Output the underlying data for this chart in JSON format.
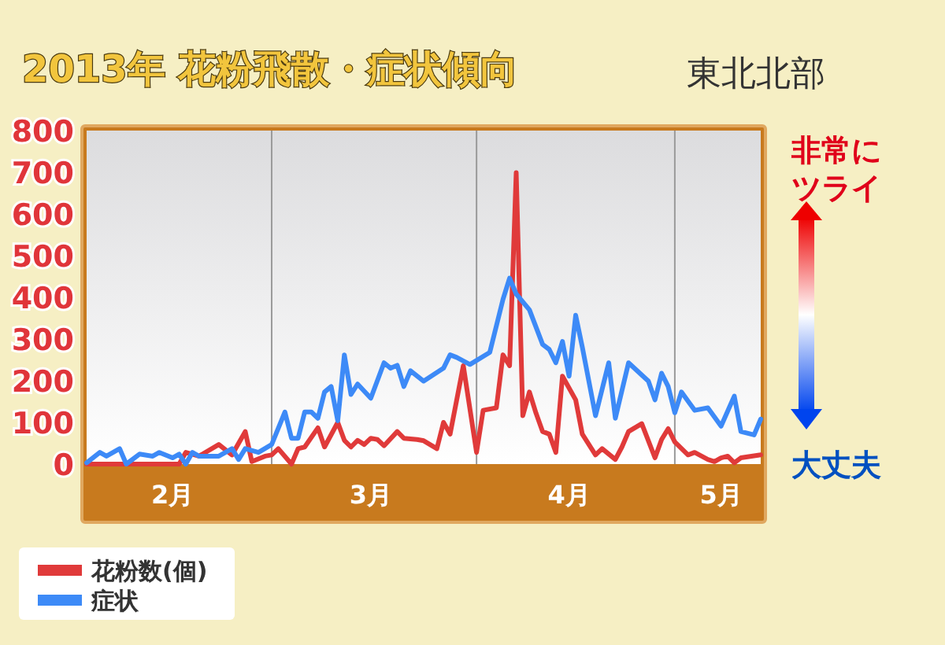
{
  "chart_data": {
    "type": "line",
    "title": "2013年 花粉飛散・症状傾向",
    "subtitle": "東北北部",
    "annotations": [
      "非常にツライ",
      "大丈夫"
    ],
    "xlim": [
      "2013-02-01",
      "2013-05-14"
    ],
    "xticks": [
      {
        "value": "2013-02-14",
        "label": "2月"
      },
      {
        "value": "2013-03-16",
        "label": "3月"
      },
      {
        "value": "2013-04-15",
        "label": "4月"
      },
      {
        "value": "2013-05-08",
        "label": "5月"
      }
    ],
    "ylim": [
      0,
      800
    ],
    "yticks": [
      0,
      100,
      200,
      300,
      400,
      500,
      600,
      700,
      800
    ],
    "ref_lines": [
      {
        "axis": "x",
        "value": "2013-03-01",
        "color": "#9a9a9a"
      },
      {
        "axis": "x",
        "value": "2013-04-01",
        "color": "#9a9a9a"
      },
      {
        "axis": "x",
        "value": "2013-05-01",
        "color": "#9a9a9a"
      }
    ],
    "legend": "bottom left",
    "marker": "none",
    "line_style": "solid",
    "series": [
      {
        "name": "花粉数(個)",
        "color": "#e03a3a",
        "x": [
          "2013-02-01",
          "2013-02-15",
          "2013-02-16",
          "2013-02-18",
          "2013-02-21",
          "2013-02-23",
          "2013-02-25",
          "2013-02-26",
          "2013-02-28",
          "2013-03-01",
          "2013-03-02",
          "2013-03-04",
          "2013-03-05",
          "2013-03-06",
          "2013-03-08",
          "2013-03-09",
          "2013-03-11",
          "2013-03-12",
          "2013-03-13",
          "2013-03-14",
          "2013-03-15",
          "2013-03-16",
          "2013-03-17",
          "2013-03-18",
          "2013-03-20",
          "2013-03-21",
          "2013-03-23",
          "2013-03-24",
          "2013-03-26",
          "2013-03-27",
          "2013-03-28",
          "2013-03-30",
          "2013-04-01",
          "2013-04-02",
          "2013-04-04",
          "2013-04-05",
          "2013-04-06",
          "2013-04-07",
          "2013-04-08",
          "2013-04-09",
          "2013-04-10",
          "2013-04-11",
          "2013-04-12",
          "2013-04-13",
          "2013-04-14",
          "2013-04-16",
          "2013-04-17",
          "2013-04-19",
          "2013-04-20",
          "2013-04-22",
          "2013-04-23",
          "2013-04-24",
          "2013-04-26",
          "2013-04-28",
          "2013-04-29",
          "2013-04-30",
          "2013-05-01",
          "2013-05-03",
          "2013-05-04",
          "2013-05-06",
          "2013-05-07",
          "2013-05-08",
          "2013-05-09",
          "2013-05-10",
          "2013-05-11",
          "2013-05-14"
        ],
        "values": [
          0,
          0,
          28,
          19,
          47,
          22,
          78,
          6,
          19,
          22,
          37,
          0,
          37,
          41,
          87,
          41,
          100,
          57,
          41,
          57,
          47,
          62,
          59,
          44,
          78,
          62,
          59,
          56,
          37,
          100,
          72,
          236,
          28,
          129,
          135,
          262,
          236,
          699,
          116,
          173,
          122,
          78,
          72,
          28,
          211,
          154,
          72,
          22,
          37,
          11,
          41,
          78,
          97,
          15,
          59,
          85,
          53,
          22,
          28,
          11,
          6,
          15,
          19,
          3,
          15,
          22
        ]
      },
      {
        "name": "症状",
        "color": "#3d8af7",
        "x": [
          "2013-02-01",
          "2013-02-03",
          "2013-02-04",
          "2013-02-06",
          "2013-02-07",
          "2013-02-09",
          "2013-02-11",
          "2013-02-12",
          "2013-02-14",
          "2013-02-15",
          "2013-02-16",
          "2013-02-17",
          "2013-02-18",
          "2013-02-21",
          "2013-02-23",
          "2013-02-24",
          "2013-02-25",
          "2013-02-27",
          "2013-03-01",
          "2013-03-03",
          "2013-03-04",
          "2013-03-05",
          "2013-03-06",
          "2013-03-07",
          "2013-03-08",
          "2013-03-09",
          "2013-03-10",
          "2013-03-11",
          "2013-03-12",
          "2013-03-13",
          "2013-03-14",
          "2013-03-16",
          "2013-03-18",
          "2013-03-19",
          "2013-03-20",
          "2013-03-21",
          "2013-03-22",
          "2013-03-24",
          "2013-03-27",
          "2013-03-28",
          "2013-03-29",
          "2013-03-31",
          "2013-04-03",
          "2013-04-05",
          "2013-04-06",
          "2013-04-07",
          "2013-04-09",
          "2013-04-11",
          "2013-04-12",
          "2013-04-13",
          "2013-04-14",
          "2013-04-15",
          "2013-04-16",
          "2013-04-17",
          "2013-04-19",
          "2013-04-21",
          "2013-04-22",
          "2013-04-24",
          "2013-04-27",
          "2013-04-28",
          "2013-04-29",
          "2013-04-30",
          "2013-05-01",
          "2013-05-02",
          "2013-05-04",
          "2013-05-06",
          "2013-05-08",
          "2013-05-10",
          "2013-05-11",
          "2013-05-13",
          "2013-05-14"
        ],
        "values": [
          3,
          28,
          19,
          37,
          0,
          24,
          19,
          28,
          15,
          24,
          0,
          28,
          19,
          19,
          37,
          11,
          37,
          28,
          47,
          125,
          62,
          62,
          125,
          125,
          110,
          173,
          186,
          104,
          262,
          167,
          192,
          158,
          243,
          230,
          237,
          186,
          224,
          199,
          230,
          262,
          256,
          239,
          268,
          395,
          446,
          408,
          370,
          287,
          275,
          243,
          294,
          211,
          357,
          281,
          116,
          243,
          110,
          243,
          199,
          154,
          218,
          186,
          123,
          173,
          129,
          135,
          91,
          163,
          78,
          70,
          108
        ]
      }
    ]
  }
}
